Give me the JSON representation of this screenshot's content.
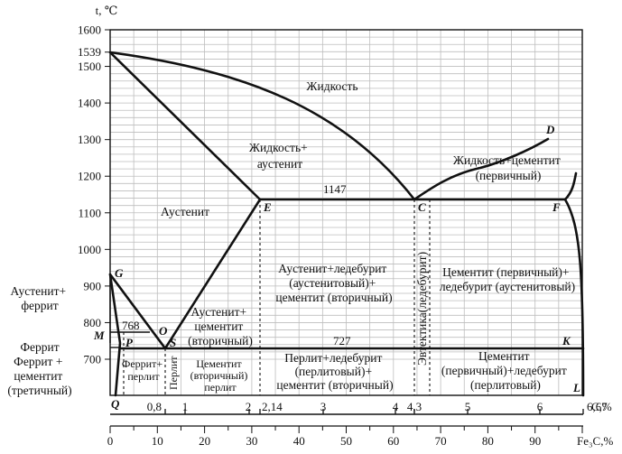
{
  "axes": {
    "y_label": "t, ℃",
    "y_ticks": [
      "1600",
      "1539",
      "1500",
      "1400",
      "1300",
      "1200",
      "1100",
      "1000",
      "900",
      "800",
      "700"
    ],
    "carbon_label": "C,%",
    "carbon_ticks": [
      "0,8",
      "1",
      "2",
      "2,14",
      "3",
      "4",
      "4,3",
      "5",
      "6",
      "6,67"
    ],
    "fe3c_label": "Fe₃C,%",
    "fe3c_ticks": [
      "0",
      "10",
      "20",
      "30",
      "40",
      "50",
      "60",
      "70",
      "80",
      "90"
    ]
  },
  "points": {
    "D": "D",
    "E": "E",
    "C": "C",
    "F": "F",
    "G": "G",
    "O": "O",
    "S": "S",
    "M": "M",
    "P": "P",
    "K": "K",
    "Q": "Q",
    "L": "L"
  },
  "values": {
    "t1147": "1147",
    "t768": "768",
    "t727": "727"
  },
  "regions": {
    "liquid": "Жидкость",
    "liquid_austenite": [
      "Жидкость+",
      "аустенит"
    ],
    "liquid_cementite": [
      "Жидкость+цементит",
      "(первичный)"
    ],
    "austenite": "Аустенит",
    "aust_ledeb": [
      "Аустенит+ледебурит",
      "(аустенитовый)+",
      "цементит (вторичный)"
    ],
    "eutectic": "Эвтектика(ледебурит)",
    "cem_ledeb_aust": [
      "Цементит (первичный)+",
      "ледебурит (аустенитовый)"
    ],
    "aust_ferrite": [
      "Аустенит+",
      "феррит"
    ],
    "aust_cementite": [
      "Аустенит+",
      "цементит",
      "(вторичный)"
    ],
    "ferrite": "Феррит",
    "ferrite_cementite": [
      "Феррит +",
      "цементит",
      "(третичный)"
    ],
    "ferrite_pearlite": [
      "Феррит+",
      "перлит"
    ],
    "pearlite": "Перлит",
    "cem_pearlite": [
      "Цементит",
      "(вторичный)",
      "перлит"
    ],
    "pearl_ledeb": [
      "Перлит+ледебурит",
      "(перлитовый)+",
      "цементит (вторичный)"
    ],
    "cem_ledeb_pearl": [
      "Цементит",
      "(первичный)+ледебурит",
      "(перлитовый)"
    ]
  }
}
